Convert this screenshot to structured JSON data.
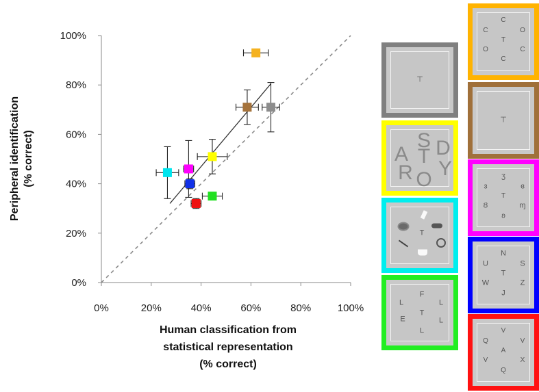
{
  "chart_data": {
    "type": "scatter",
    "x": [
      62,
      68,
      58.5,
      44.5,
      35,
      26.5,
      35.5,
      44.5,
      38
    ],
    "y": [
      93,
      71,
      71,
      51,
      46,
      44.5,
      40,
      35,
      32
    ],
    "x_err": [
      5,
      3.5,
      4.5,
      6,
      2,
      4.5,
      2,
      4,
      2
    ],
    "y_err": [
      0,
      10,
      7,
      7,
      11.5,
      10.5,
      2,
      0,
      2
    ],
    "colors": [
      "#f5b220",
      "#8c8c8c",
      "#a5733c",
      "#ffff00",
      "#ff00ff",
      "#00e5ee",
      "#1030e8",
      "#22e022",
      "#ee1111"
    ],
    "xlim": [
      0,
      100
    ],
    "ylim": [
      0,
      100
    ],
    "x_ticks": [
      "0%",
      "20%",
      "40%",
      "60%",
      "80%",
      "100%"
    ],
    "y_ticks": [
      "0%",
      "20%",
      "40%",
      "60%",
      "80%",
      "100%"
    ],
    "xlabel_lines": [
      "Human classification from",
      "statistical representation",
      "(% correct)"
    ],
    "ylabel_lines": [
      "Peripheral identification",
      "(% correct)"
    ],
    "fit_line": {
      "x": [
        27.5,
        68
      ],
      "y": [
        32,
        80.5
      ]
    },
    "identity_line": {
      "x": [
        0,
        100
      ],
      "y": [
        0,
        100
      ]
    },
    "grid": false
  },
  "panels": [
    {
      "id": "gray",
      "border": "#808080",
      "glyphs": [
        "⊤"
      ]
    },
    {
      "id": "yellow",
      "border": "#ffff00",
      "glyphs": [
        "S",
        "A",
        "T",
        "D",
        "R",
        "Y",
        "O"
      ]
    },
    {
      "id": "cyan",
      "border": "#00eeee",
      "glyphs": [
        "T"
      ]
    },
    {
      "id": "green",
      "border": "#22ee22",
      "glyphs": [
        "F",
        "L",
        "L",
        "T",
        "E",
        "L",
        "L"
      ]
    },
    {
      "id": "orange",
      "border": "#ffb300",
      "glyphs": [
        "C",
        "C",
        "O",
        "T",
        "O",
        "C",
        "C"
      ]
    },
    {
      "id": "brown",
      "border": "#a0703a",
      "glyphs": [
        "⊤"
      ]
    },
    {
      "id": "magenta",
      "border": "#ff00ff",
      "glyphs": [
        "ʒ",
        "ɜ",
        "ɞ",
        "T",
        "Ȣ",
        "ɱ",
        "ʚ"
      ]
    },
    {
      "id": "blue",
      "border": "#0000ff",
      "glyphs": [
        "N",
        "U",
        "S",
        "T",
        "W",
        "Z",
        "J"
      ]
    },
    {
      "id": "red",
      "border": "#ff1111",
      "glyphs": [
        "V",
        "Q",
        "V",
        "A",
        "V",
        "X",
        "Q"
      ]
    }
  ]
}
